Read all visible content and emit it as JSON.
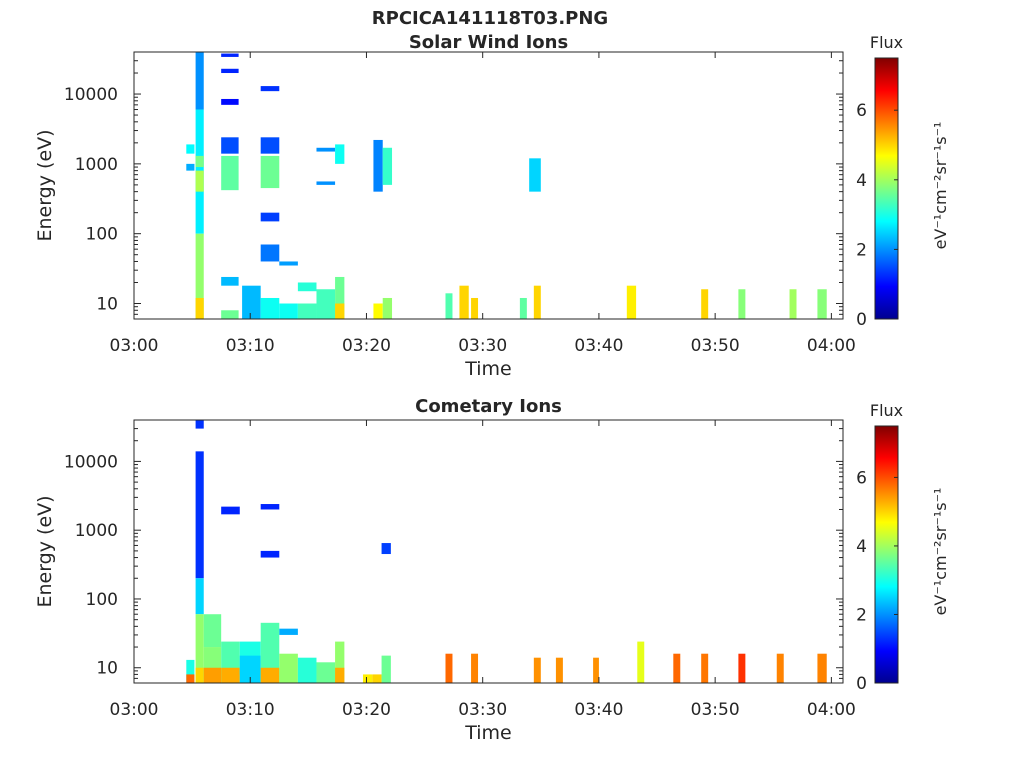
{
  "figure_title": "RPCICA141118T03.PNG",
  "colors": {
    "colormap": [
      "#00008f",
      "#0000ff",
      "#0080ff",
      "#00ffff",
      "#80ff80",
      "#ffff00",
      "#ff8000",
      "#ff0000",
      "#800000"
    ],
    "axis": "#262626",
    "background": "#ffffff"
  },
  "chart_data": [
    {
      "type": "heatmap",
      "title": "Solar Wind Ions",
      "xlabel": "Time",
      "ylabel": "Energy (eV)",
      "xlim": [
        "03:00",
        "04:01"
      ],
      "xticks": [
        "03:00",
        "03:10",
        "03:20",
        "03:30",
        "03:40",
        "03:50",
        "04:00"
      ],
      "y_scale": "log",
      "ylim": [
        6,
        40000
      ],
      "yticks": [
        10,
        100,
        1000,
        10000
      ],
      "ytick_labels": [
        "10",
        "100",
        "1000",
        "10000"
      ],
      "colorbar": {
        "label": "Flux",
        "unit": "eV⁻¹cm⁻²sr⁻¹s⁻¹",
        "range": [
          0,
          7.5
        ],
        "ticks": [
          0,
          2,
          4,
          6
        ],
        "tick_labels": [
          "0",
          "2",
          "4",
          "6"
        ]
      },
      "cells": [
        [
          "03:04.5",
          "03:05.2",
          1400,
          1900,
          2.8
        ],
        [
          "03:04.5",
          "03:05.2",
          800,
          1000,
          2.2
        ],
        [
          "03:05.3",
          "03:06.0",
          6000,
          40000,
          2.0
        ],
        [
          "03:05.3",
          "03:06.0",
          100,
          6000,
          2.7
        ],
        [
          "03:05.3",
          "03:06.0",
          900,
          1300,
          3.7
        ],
        [
          "03:05.3",
          "03:06.0",
          400,
          800,
          4.1
        ],
        [
          "03:05.3",
          "03:06.0",
          6,
          100,
          3.9
        ],
        [
          "03:05.3",
          "03:06.0",
          6,
          12,
          5.0
        ],
        [
          "03:07.5",
          "03:09.0",
          34000,
          38000,
          1.2
        ],
        [
          "03:07.5",
          "03:09.0",
          20000,
          23000,
          1.2
        ],
        [
          "03:07.5",
          "03:09.0",
          7000,
          8500,
          1.0
        ],
        [
          "03:07.5",
          "03:09.0",
          1400,
          2400,
          1.5
        ],
        [
          "03:07.5",
          "03:09.0",
          420,
          1300,
          3.5
        ],
        [
          "03:07.5",
          "03:09.0",
          18,
          24,
          2.3
        ],
        [
          "03:07.5",
          "03:09.0",
          6,
          8,
          3.6
        ],
        [
          "03:09.3",
          "03:10.9",
          6,
          18,
          2.3
        ],
        [
          "03:10.9",
          "03:12.5",
          11000,
          13000,
          1.3
        ],
        [
          "03:10.9",
          "03:12.5",
          1400,
          2400,
          1.5
        ],
        [
          "03:10.9",
          "03:12.5",
          450,
          1300,
          3.6
        ],
        [
          "03:10.9",
          "03:12.5",
          150,
          200,
          1.4
        ],
        [
          "03:10.9",
          "03:12.5",
          40,
          70,
          1.8
        ],
        [
          "03:10.9",
          "03:12.5",
          6,
          12,
          2.9
        ],
        [
          "03:12.5",
          "03:14.1",
          35,
          40,
          2.1
        ],
        [
          "03:12.5",
          "03:14.1",
          6,
          10,
          2.9
        ],
        [
          "03:14.1",
          "03:15.7",
          15,
          20,
          3.1
        ],
        [
          "03:14.1",
          "03:15.7",
          6,
          10,
          3.3
        ],
        [
          "03:15.7",
          "03:17.3",
          1500,
          1700,
          2.0
        ],
        [
          "03:15.7",
          "03:17.3",
          500,
          560,
          2.0
        ],
        [
          "03:15.7",
          "03:17.3",
          6,
          16,
          3.3
        ],
        [
          "03:17.3",
          "03:18.1",
          6,
          24,
          3.6
        ],
        [
          "03:17.3",
          "03:18.1",
          6,
          10,
          5.0
        ],
        [
          "03:17.3",
          "03:18.1",
          1000,
          1900,
          2.9
        ],
        [
          "03:20.6",
          "03:21.4",
          400,
          2200,
          1.9
        ],
        [
          "03:20.6",
          "03:21.4",
          6,
          10,
          4.7
        ],
        [
          "03:21.4",
          "03:22.2",
          500,
          1700,
          3.2
        ],
        [
          "03:21.4",
          "03:22.2",
          6,
          12,
          3.9
        ],
        [
          "03:26.8",
          "03:27.4",
          6,
          14,
          3.4
        ],
        [
          "03:28.0",
          "03:28.8",
          6,
          18,
          5.0
        ],
        [
          "03:29.0",
          "03:29.6",
          6,
          12,
          5.0
        ],
        [
          "03:33.2",
          "03:33.8",
          6,
          12,
          3.5
        ],
        [
          "03:34.4",
          "03:35.0",
          6,
          18,
          5.0
        ],
        [
          "03:34.0",
          "03:35.0",
          400,
          1200,
          2.5
        ],
        [
          "03:42.4",
          "03:43.2",
          6,
          18,
          4.8
        ],
        [
          "03:48.8",
          "03:49.4",
          6,
          16,
          5.0
        ],
        [
          "03:52.0",
          "03:52.6",
          6,
          16,
          3.8
        ],
        [
          "03:56.4",
          "03:57.0",
          6,
          16,
          4.0
        ],
        [
          "03:58.8",
          "03:59.6",
          6,
          16,
          3.8
        ]
      ]
    },
    {
      "type": "heatmap",
      "title": "Cometary Ions",
      "xlabel": "Time",
      "ylabel": "Energy (eV)",
      "xlim": [
        "03:00",
        "04:01"
      ],
      "xticks": [
        "03:00",
        "03:10",
        "03:20",
        "03:30",
        "03:40",
        "03:50",
        "04:00"
      ],
      "y_scale": "log",
      "ylim": [
        6,
        40000
      ],
      "yticks": [
        10,
        100,
        1000,
        10000
      ],
      "ytick_labels": [
        "10",
        "100",
        "1000",
        "10000"
      ],
      "colorbar": {
        "label": "Flux",
        "unit": "eV⁻¹cm⁻²sr⁻¹s⁻¹",
        "range": [
          0,
          7.5
        ],
        "ticks": [
          0,
          2,
          4,
          6
        ],
        "tick_labels": [
          "0",
          "2",
          "4",
          "6"
        ]
      },
      "cells": [
        [
          "03:04.5",
          "03:05.2",
          6,
          13,
          3.0
        ],
        [
          "03:04.5",
          "03:05.2",
          6,
          8,
          5.8
        ],
        [
          "03:05.3",
          "03:06.0",
          30000,
          40000,
          1.3
        ],
        [
          "03:05.3",
          "03:06.0",
          200,
          14000,
          1.3
        ],
        [
          "03:05.3",
          "03:06.0",
          60,
          200,
          2.5
        ],
        [
          "03:05.3",
          "03:06.0",
          6,
          60,
          3.9
        ],
        [
          "03:05.3",
          "03:06.0",
          6,
          10,
          5.0
        ],
        [
          "03:06.0",
          "03:07.5",
          20,
          60,
          3.6
        ],
        [
          "03:06.0",
          "03:07.5",
          6,
          20,
          3.8
        ],
        [
          "03:06.0",
          "03:07.5",
          6,
          10,
          5.4
        ],
        [
          "03:07.5",
          "03:09.1",
          1700,
          2200,
          1.2
        ],
        [
          "03:07.5",
          "03:09.1",
          6,
          24,
          3.4
        ],
        [
          "03:07.5",
          "03:09.1",
          6,
          10,
          5.3
        ],
        [
          "03:09.1",
          "03:10.9",
          8,
          24,
          3.0
        ],
        [
          "03:09.1",
          "03:10.9",
          6,
          15,
          2.5
        ],
        [
          "03:10.9",
          "03:12.5",
          2000,
          2400,
          1.2
        ],
        [
          "03:10.9",
          "03:12.5",
          400,
          500,
          1.2
        ],
        [
          "03:10.9",
          "03:12.5",
          6,
          45,
          3.4
        ],
        [
          "03:10.9",
          "03:12.5",
          6,
          10,
          5.3
        ],
        [
          "03:12.5",
          "03:14.1",
          30,
          37,
          2.2
        ],
        [
          "03:12.5",
          "03:14.1",
          6,
          16,
          3.9
        ],
        [
          "03:14.1",
          "03:15.7",
          6,
          14,
          3.1
        ],
        [
          "03:15.7",
          "03:17.3",
          6,
          12,
          3.6
        ],
        [
          "03:17.3",
          "03:18.1",
          6,
          24,
          3.9
        ],
        [
          "03:17.3",
          "03:18.1",
          6,
          10,
          5.3
        ],
        [
          "03:19.7",
          "03:20.5",
          6,
          8,
          4.8
        ],
        [
          "03:20.5",
          "03:21.3",
          6,
          8,
          5.0
        ],
        [
          "03:21.3",
          "03:22.1",
          6,
          15,
          3.6
        ],
        [
          "03:21.3",
          "03:22.1",
          450,
          650,
          1.4
        ],
        [
          "03:26.8",
          "03:27.4",
          6,
          16,
          5.8
        ],
        [
          "03:29.0",
          "03:29.6",
          6,
          16,
          5.6
        ],
        [
          "03:34.4",
          "03:35.0",
          6,
          14,
          5.5
        ],
        [
          "03:36.3",
          "03:36.9",
          6,
          14,
          5.5
        ],
        [
          "03:39.5",
          "03:40.0",
          6,
          14,
          5.5
        ],
        [
          "03:43.3",
          "03:43.9",
          6,
          24,
          4.5
        ],
        [
          "03:46.4",
          "03:47.0",
          6,
          16,
          5.8
        ],
        [
          "03:48.8",
          "03:49.4",
          6,
          16,
          5.7
        ],
        [
          "03:52.0",
          "03:52.6",
          6,
          16,
          6.2
        ],
        [
          "03:55.3",
          "03:55.9",
          6,
          16,
          5.6
        ],
        [
          "03:58.8",
          "03:59.6",
          6,
          16,
          5.6
        ]
      ]
    }
  ]
}
